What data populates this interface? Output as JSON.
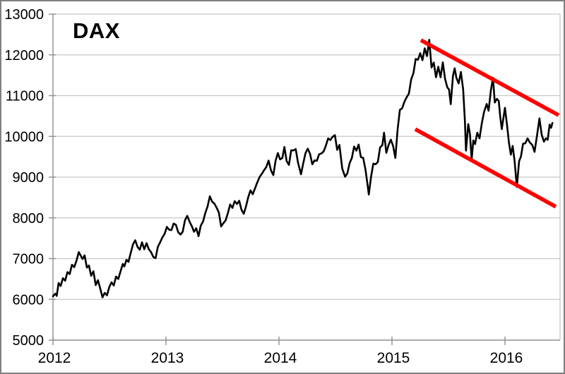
{
  "chart_data": {
    "type": "line",
    "title": "DAX",
    "xlabel": "",
    "ylabel": "",
    "xlim": [
      2012,
      2016.4875
    ],
    "ylim": [
      5000,
      13000
    ],
    "grid": true,
    "legend": "none",
    "colors": {
      "series": "#000000",
      "trendline": "#ff0000",
      "grid": "#c7c7c7",
      "axis": "#8f8f8f",
      "background": "#ffffff",
      "border": "#808080"
    },
    "x_ticks": [
      {
        "value": 2012,
        "label": "2012"
      },
      {
        "value": 2013,
        "label": "2013"
      },
      {
        "value": 2014,
        "label": "2014"
      },
      {
        "value": 2015,
        "label": "2015"
      },
      {
        "value": 2016,
        "label": "2016"
      }
    ],
    "y_ticks": [
      {
        "value": 5000,
        "label": "5000"
      },
      {
        "value": 6000,
        "label": "6000"
      },
      {
        "value": 7000,
        "label": "7000"
      },
      {
        "value": 8000,
        "label": "8000"
      },
      {
        "value": 9000,
        "label": "9000"
      },
      {
        "value": 10000,
        "label": "10000"
      },
      {
        "value": 11000,
        "label": "11000"
      },
      {
        "value": 12000,
        "label": "12000"
      },
      {
        "value": 13000,
        "label": "13000"
      }
    ],
    "series": [
      {
        "name": "DAX",
        "color": "#000000",
        "points": [
          [
            2012.0,
            6075
          ],
          [
            2012.02,
            6140
          ],
          [
            2012.033,
            6085
          ],
          [
            2012.05,
            6400
          ],
          [
            2012.068,
            6330
          ],
          [
            2012.088,
            6520
          ],
          [
            2012.108,
            6460
          ],
          [
            2012.128,
            6670
          ],
          [
            2012.148,
            6620
          ],
          [
            2012.168,
            6850
          ],
          [
            2012.188,
            6790
          ],
          [
            2012.208,
            6950
          ],
          [
            2012.228,
            7160
          ],
          [
            2012.248,
            7060
          ],
          [
            2012.262,
            6990
          ],
          [
            2012.28,
            7080
          ],
          [
            2012.3,
            6780
          ],
          [
            2012.318,
            6830
          ],
          [
            2012.338,
            6580
          ],
          [
            2012.358,
            6690
          ],
          [
            2012.378,
            6350
          ],
          [
            2012.398,
            6470
          ],
          [
            2012.418,
            6270
          ],
          [
            2012.438,
            6050
          ],
          [
            2012.458,
            6160
          ],
          [
            2012.478,
            6100
          ],
          [
            2012.498,
            6300
          ],
          [
            2012.518,
            6420
          ],
          [
            2012.538,
            6340
          ],
          [
            2012.558,
            6560
          ],
          [
            2012.578,
            6500
          ],
          [
            2012.598,
            6690
          ],
          [
            2012.618,
            6870
          ],
          [
            2012.632,
            6810
          ],
          [
            2012.65,
            6970
          ],
          [
            2012.668,
            6920
          ],
          [
            2012.688,
            7140
          ],
          [
            2012.708,
            7350
          ],
          [
            2012.728,
            7450
          ],
          [
            2012.748,
            7290
          ],
          [
            2012.768,
            7220
          ],
          [
            2012.788,
            7400
          ],
          [
            2012.808,
            7230
          ],
          [
            2012.828,
            7380
          ],
          [
            2012.848,
            7230
          ],
          [
            2012.868,
            7160
          ],
          [
            2012.888,
            7040
          ],
          [
            2012.908,
            7010
          ],
          [
            2012.928,
            7290
          ],
          [
            2012.948,
            7400
          ],
          [
            2012.968,
            7520
          ],
          [
            2012.988,
            7610
          ],
          [
            2013.008,
            7780
          ],
          [
            2013.028,
            7710
          ],
          [
            2013.048,
            7700
          ],
          [
            2013.068,
            7860
          ],
          [
            2013.088,
            7830
          ],
          [
            2013.108,
            7650
          ],
          [
            2013.128,
            7590
          ],
          [
            2013.148,
            7660
          ],
          [
            2013.168,
            7940
          ],
          [
            2013.188,
            8050
          ],
          [
            2013.208,
            7910
          ],
          [
            2013.228,
            7800
          ],
          [
            2013.248,
            7660
          ],
          [
            2013.268,
            7745
          ],
          [
            2013.288,
            7550
          ],
          [
            2013.308,
            7810
          ],
          [
            2013.328,
            7910
          ],
          [
            2013.348,
            8120
          ],
          [
            2013.368,
            8280
          ],
          [
            2013.388,
            8530
          ],
          [
            2013.408,
            8400
          ],
          [
            2013.428,
            8350
          ],
          [
            2013.448,
            8250
          ],
          [
            2013.468,
            8130
          ],
          [
            2013.488,
            7790
          ],
          [
            2013.508,
            7870
          ],
          [
            2013.528,
            7940
          ],
          [
            2013.548,
            8120
          ],
          [
            2013.568,
            8330
          ],
          [
            2013.588,
            8245
          ],
          [
            2013.608,
            8410
          ],
          [
            2013.628,
            8340
          ],
          [
            2013.648,
            8420
          ],
          [
            2013.668,
            8200
          ],
          [
            2013.688,
            8100
          ],
          [
            2013.708,
            8280
          ],
          [
            2013.728,
            8510
          ],
          [
            2013.748,
            8675
          ],
          [
            2013.768,
            8580
          ],
          [
            2013.788,
            8725
          ],
          [
            2013.808,
            8870
          ],
          [
            2013.828,
            9000
          ],
          [
            2013.848,
            9080
          ],
          [
            2013.868,
            9170
          ],
          [
            2013.888,
            9250
          ],
          [
            2013.908,
            9405
          ],
          [
            2013.93,
            9160
          ],
          [
            2013.95,
            9050
          ],
          [
            2013.97,
            9400
          ],
          [
            2013.99,
            9590
          ],
          [
            2014.01,
            9435
          ],
          [
            2014.03,
            9470
          ],
          [
            2014.048,
            9740
          ],
          [
            2014.068,
            9390
          ],
          [
            2014.088,
            9300
          ],
          [
            2014.108,
            9660
          ],
          [
            2014.128,
            9655
          ],
          [
            2014.148,
            9690
          ],
          [
            2014.168,
            9360
          ],
          [
            2014.195,
            9070
          ],
          [
            2014.215,
            9340
          ],
          [
            2014.235,
            9590
          ],
          [
            2014.255,
            9700
          ],
          [
            2014.275,
            9570
          ],
          [
            2014.295,
            9315
          ],
          [
            2014.315,
            9410
          ],
          [
            2014.335,
            9400
          ],
          [
            2014.355,
            9560
          ],
          [
            2014.375,
            9580
          ],
          [
            2014.395,
            9630
          ],
          [
            2014.415,
            9770
          ],
          [
            2014.435,
            9950
          ],
          [
            2014.455,
            9910
          ],
          [
            2014.475,
            9990
          ],
          [
            2014.495,
            10030
          ],
          [
            2014.515,
            9670
          ],
          [
            2014.535,
            9790
          ],
          [
            2014.56,
            9210
          ],
          [
            2014.585,
            9010
          ],
          [
            2014.605,
            9090
          ],
          [
            2014.625,
            9340
          ],
          [
            2014.645,
            9470
          ],
          [
            2014.665,
            9750
          ],
          [
            2014.685,
            9650
          ],
          [
            2014.705,
            9800
          ],
          [
            2014.725,
            9490
          ],
          [
            2014.745,
            9475
          ],
          [
            2014.765,
            9195
          ],
          [
            2014.785,
            8790
          ],
          [
            2014.795,
            8572
          ],
          [
            2014.815,
            9010
          ],
          [
            2014.835,
            9330
          ],
          [
            2014.855,
            9315
          ],
          [
            2014.875,
            9370
          ],
          [
            2014.895,
            9730
          ],
          [
            2014.915,
            9785
          ],
          [
            2014.93,
            10090
          ],
          [
            2014.95,
            9595
          ],
          [
            2014.97,
            9790
          ],
          [
            2014.99,
            9920
          ],
          [
            2015.01,
            9765
          ],
          [
            2015.03,
            9470
          ],
          [
            2015.05,
            10170
          ],
          [
            2015.07,
            10650
          ],
          [
            2015.09,
            10690
          ],
          [
            2015.11,
            10850
          ],
          [
            2015.13,
            10960
          ],
          [
            2015.15,
            11050
          ],
          [
            2015.17,
            11400
          ],
          [
            2015.19,
            11550
          ],
          [
            2015.21,
            11900
          ],
          [
            2015.23,
            11880
          ],
          [
            2015.25,
            12040
          ],
          [
            2015.27,
            11870
          ],
          [
            2015.29,
            12160
          ],
          [
            2015.31,
            11970
          ],
          [
            2015.33,
            12370
          ],
          [
            2015.35,
            11690
          ],
          [
            2015.37,
            11810
          ],
          [
            2015.39,
            11450
          ],
          [
            2015.41,
            11710
          ],
          [
            2015.43,
            11450
          ],
          [
            2015.45,
            11815
          ],
          [
            2015.47,
            11410
          ],
          [
            2015.49,
            11200
          ],
          [
            2015.505,
            11150
          ],
          [
            2015.52,
            10790
          ],
          [
            2015.54,
            11490
          ],
          [
            2015.555,
            11670
          ],
          [
            2015.57,
            11440
          ],
          [
            2015.59,
            11300
          ],
          [
            2015.61,
            11580
          ],
          [
            2015.63,
            11150
          ],
          [
            2015.645,
            10400
          ],
          [
            2015.655,
            9650
          ],
          [
            2015.675,
            10300
          ],
          [
            2015.69,
            10060
          ],
          [
            2015.705,
            9420
          ],
          [
            2015.72,
            9900
          ],
          [
            2015.735,
            9810
          ],
          [
            2015.755,
            10090
          ],
          [
            2015.775,
            9950
          ],
          [
            2015.795,
            10320
          ],
          [
            2015.815,
            10600
          ],
          [
            2015.838,
            10795
          ],
          [
            2015.855,
            10630
          ],
          [
            2015.875,
            11120
          ],
          [
            2015.894,
            11440
          ],
          [
            2015.91,
            10830
          ],
          [
            2015.928,
            10920
          ],
          [
            2015.945,
            10870
          ],
          [
            2015.958,
            10480
          ],
          [
            2015.972,
            10180
          ],
          [
            2015.985,
            10430
          ],
          [
            2016.0,
            10700
          ],
          [
            2016.018,
            10280
          ],
          [
            2016.035,
            9850
          ],
          [
            2016.052,
            9550
          ],
          [
            2016.068,
            9765
          ],
          [
            2016.085,
            9400
          ],
          [
            2016.105,
            8760
          ],
          [
            2016.125,
            9390
          ],
          [
            2016.142,
            9510
          ],
          [
            2016.16,
            9820
          ],
          [
            2016.18,
            9830
          ],
          [
            2016.2,
            9950
          ],
          [
            2016.22,
            9850
          ],
          [
            2016.242,
            9790
          ],
          [
            2016.262,
            9620
          ],
          [
            2016.285,
            10050
          ],
          [
            2016.305,
            10440
          ],
          [
            2016.325,
            10040
          ],
          [
            2016.345,
            9870
          ],
          [
            2016.362,
            9950
          ],
          [
            2016.378,
            9916
          ],
          [
            2016.395,
            10290
          ],
          [
            2016.408,
            10210
          ],
          [
            2016.42,
            10330
          ]
        ]
      }
    ],
    "annotations": [
      {
        "name": "upper-trendline",
        "color": "#ff0000",
        "from": [
          2015.256,
          12360
        ],
        "to": [
          2016.475,
          10520
        ]
      },
      {
        "name": "lower-trendline",
        "color": "#ff0000",
        "from": [
          2015.206,
          10177
        ],
        "to": [
          2016.45,
          8273
        ]
      }
    ]
  }
}
